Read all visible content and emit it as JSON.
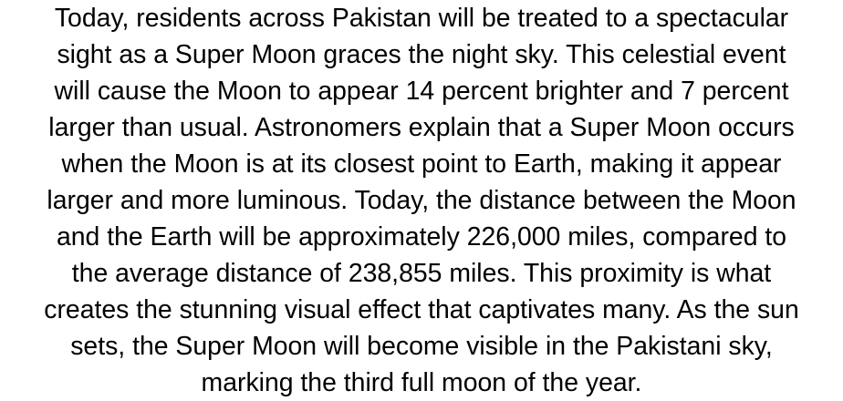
{
  "document": {
    "lines": [
      "Today, residents across Pakistan will be treated to a spectacular",
      "sight as a Super Moon graces the night sky. This celestial event",
      "will cause the Moon to appear 14 percent brighter and 7 percent",
      "larger than usual. Astronomers explain that a Super Moon occurs",
      "when the Moon is at its closest point to Earth, making it appear",
      "larger and more luminous. Today, the distance between the Moon",
      "and the Earth will be approximately 226,000 miles, compared to",
      "the average distance of 238,855 miles. This proximity is what",
      "creates the stunning visual effect that captivates many. As the sun",
      "sets, the Super Moon will become visible in the Pakistani sky,",
      "marking the third full moon of the year."
    ]
  }
}
